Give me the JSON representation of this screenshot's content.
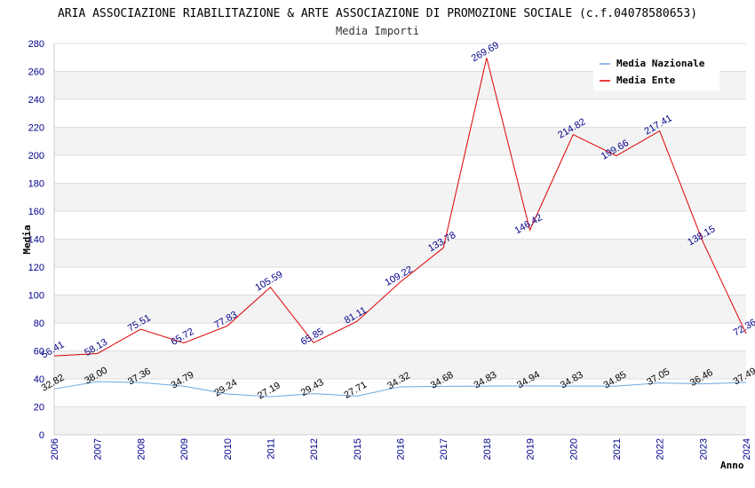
{
  "chart_data": {
    "type": "line",
    "title": "ARIA ASSOCIAZIONE RIABILITAZIONE & ARTE ASSOCIAZIONE DI PROMOZIONE SOCIALE (c.f.04078580653)",
    "subtitle": "Media Importi",
    "xlabel": "Anno",
    "ylabel": "Media",
    "ylim": [
      0,
      280
    ],
    "yticks": [
      0,
      20,
      40,
      60,
      80,
      100,
      120,
      140,
      160,
      180,
      200,
      220,
      240,
      260,
      280
    ],
    "x": [
      "2006",
      "2007",
      "2008",
      "2009",
      "2010",
      "2011",
      "2012",
      "2015",
      "2016",
      "2017",
      "2018",
      "2019",
      "2020",
      "2021",
      "2022",
      "2023",
      "2024"
    ],
    "grid": true,
    "legend_position": "top-right",
    "series": [
      {
        "name": "Media Nazionale",
        "color": "#6ca6e0",
        "values": [
          32.82,
          38.0,
          37.36,
          34.79,
          29.24,
          27.19,
          29.43,
          27.71,
          34.32,
          34.68,
          34.83,
          34.94,
          34.83,
          34.85,
          37.05,
          36.46,
          37.49
        ],
        "labels": [
          "32.82",
          "38.00",
          "37.36",
          "34.79",
          "29.24",
          "27.19",
          "29.43",
          "27.71",
          "34.32",
          "34.68",
          "34.83",
          "34.94",
          "34.83",
          "34.85",
          "37.05",
          "36.46",
          "37.49"
        ]
      },
      {
        "name": "Media Ente",
        "color": "#dd0000",
        "values": [
          56.41,
          58.13,
          75.51,
          65.72,
          77.83,
          105.59,
          65.85,
          81.11,
          109.22,
          133.78,
          269.69,
          146.42,
          214.82,
          199.66,
          217.41,
          138.15,
          72.36
        ],
        "labels": [
          "56.41",
          "58.13",
          "75.51",
          "65.72",
          "77.83",
          "105.59",
          "65.85",
          "81.11",
          "109.22",
          "133.78",
          "269.69",
          "146.42",
          "214.82",
          "199.66",
          "217.41",
          "138.15",
          "72.36"
        ]
      }
    ]
  }
}
